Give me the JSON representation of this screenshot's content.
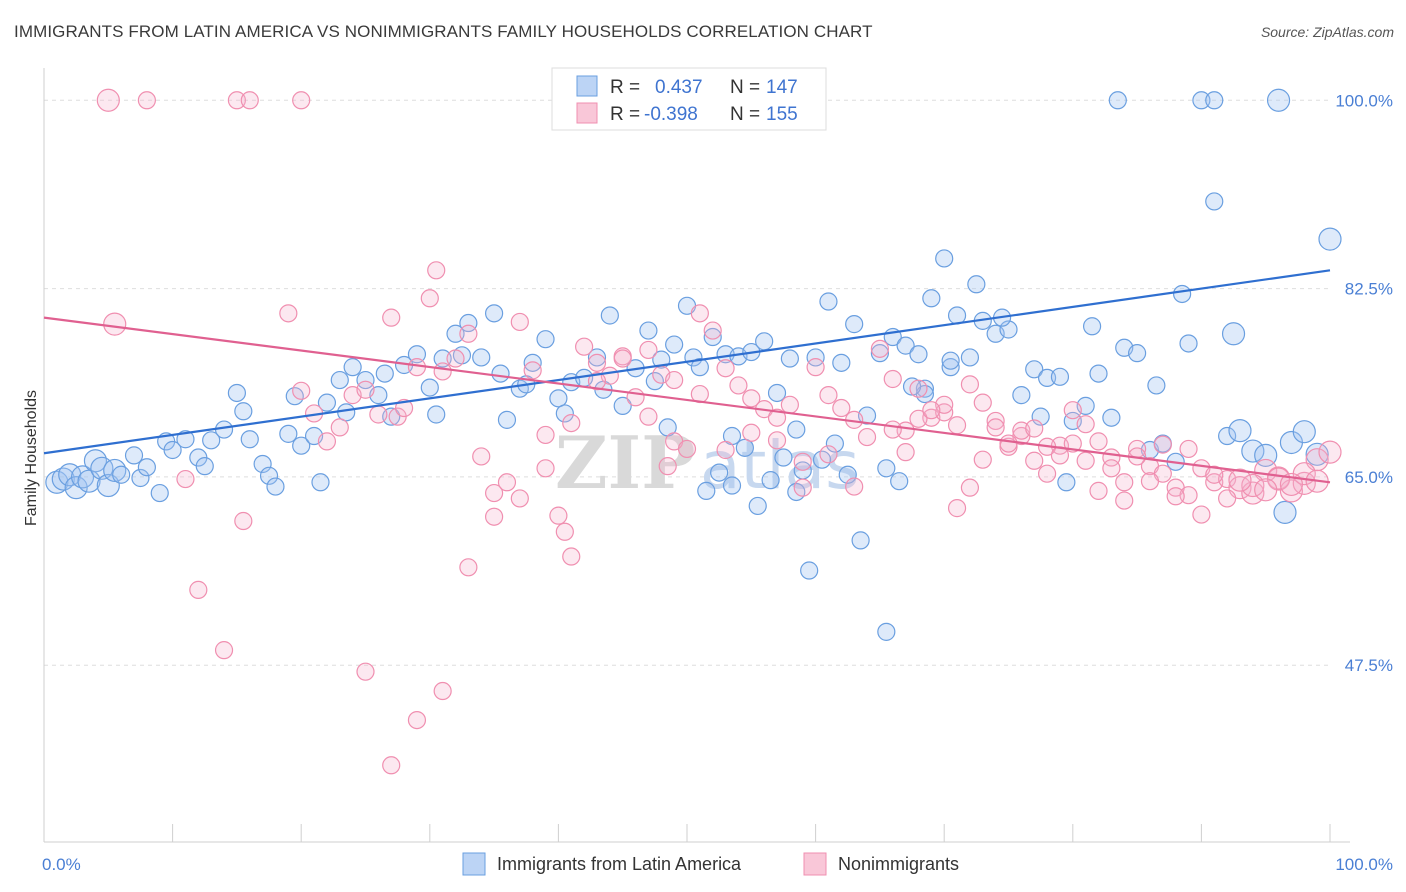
{
  "title": "IMMIGRANTS FROM LATIN AMERICA VS NONIMMIGRANTS FAMILY HOUSEHOLDS CORRELATION CHART",
  "source": "Source: ZipAtlas.com",
  "watermark": "ZIPatlas",
  "colors": {
    "blue": "#6a9fe0",
    "blue_line": "#2f6fd0",
    "pink": "#f08fb0",
    "pink_line": "#e06090",
    "tick": "#4a7fd4"
  },
  "legend": {
    "r_label": "R =",
    "n_label": "N =",
    "blue": {
      "r": "0.437",
      "n": "147"
    },
    "pink": {
      "r": "-0.398",
      "n": "155"
    }
  },
  "chart_data": {
    "type": "scatter",
    "title": "IMMIGRANTS FROM LATIN AMERICA VS NONIMMIGRANTS FAMILY HOUSEHOLDS CORRELATION CHART",
    "xlabel": "",
    "ylabel": "Family Households",
    "xlim": [
      0,
      100
    ],
    "ylim": [
      32,
      103
    ],
    "x_ticks": [
      "0.0%",
      "100.0%"
    ],
    "y_ticks": [
      {
        "value": 100.0,
        "label": "100.0%"
      },
      {
        "value": 82.5,
        "label": "82.5%"
      },
      {
        "value": 65.0,
        "label": "65.0%"
      },
      {
        "value": 47.5,
        "label": "47.5%"
      }
    ],
    "legend_position": "bottom",
    "series": [
      {
        "name": "Immigrants from Latin America",
        "trend": [
          [
            0,
            67.2
          ],
          [
            100,
            84.2
          ]
        ],
        "points": [
          [
            1,
            64.5
          ],
          [
            1.5,
            64.8
          ],
          [
            2,
            65.2
          ],
          [
            2.5,
            64.0
          ],
          [
            3,
            65.0
          ],
          [
            3.5,
            64.6
          ],
          [
            4,
            66.5
          ],
          [
            4.5,
            65.8
          ],
          [
            5,
            64.2
          ],
          [
            5.5,
            65.6
          ],
          [
            6,
            65.2
          ],
          [
            7,
            67.0
          ],
          [
            7.5,
            64.9
          ],
          [
            8,
            65.9
          ],
          [
            9,
            63.5
          ],
          [
            9.5,
            68.3
          ],
          [
            10,
            67.5
          ],
          [
            11,
            68.5
          ],
          [
            12,
            66.8
          ],
          [
            12.5,
            66.0
          ],
          [
            13,
            68.4
          ],
          [
            14,
            69.4
          ],
          [
            15,
            72.8
          ],
          [
            15.5,
            71.1
          ],
          [
            16,
            68.5
          ],
          [
            17,
            66.2
          ],
          [
            17.5,
            65.1
          ],
          [
            18,
            64.1
          ],
          [
            19,
            69.0
          ],
          [
            19.5,
            72.5
          ],
          [
            20,
            67.9
          ],
          [
            21,
            68.8
          ],
          [
            21.5,
            64.5
          ],
          [
            22,
            71.9
          ],
          [
            23,
            74.0
          ],
          [
            23.5,
            71.0
          ],
          [
            24,
            75.2
          ],
          [
            25,
            74.0
          ],
          [
            26,
            72.6
          ],
          [
            26.5,
            74.6
          ],
          [
            27,
            70.6
          ],
          [
            28,
            75.4
          ],
          [
            29,
            76.4
          ],
          [
            30,
            73.3
          ],
          [
            30.5,
            70.8
          ],
          [
            31,
            76.0
          ],
          [
            32,
            78.3
          ],
          [
            32.5,
            76.3
          ],
          [
            33,
            79.3
          ],
          [
            34,
            76.1
          ],
          [
            35,
            80.2
          ],
          [
            35.5,
            74.6
          ],
          [
            36,
            70.3
          ],
          [
            37,
            73.2
          ],
          [
            37.5,
            73.6
          ],
          [
            38,
            75.6
          ],
          [
            39,
            77.8
          ],
          [
            40,
            72.3
          ],
          [
            40.5,
            70.9
          ],
          [
            41,
            73.8
          ],
          [
            42,
            74.2
          ],
          [
            43,
            76.1
          ],
          [
            43.5,
            73.1
          ],
          [
            44,
            80.0
          ],
          [
            45,
            71.6
          ],
          [
            46,
            75.1
          ],
          [
            47,
            78.6
          ],
          [
            47.5,
            73.9
          ],
          [
            48,
            75.9
          ],
          [
            48.5,
            69.6
          ],
          [
            49,
            77.3
          ],
          [
            50,
            80.9
          ],
          [
            50.5,
            76.1
          ],
          [
            51,
            75.2
          ],
          [
            52,
            78.0
          ],
          [
            53,
            76.4
          ],
          [
            53.5,
            68.8
          ],
          [
            54,
            76.2
          ],
          [
            55,
            76.6
          ],
          [
            56,
            77.6
          ],
          [
            57,
            72.8
          ],
          [
            58,
            76.0
          ],
          [
            58.5,
            69.4
          ],
          [
            59,
            65.6
          ],
          [
            60,
            76.1
          ],
          [
            61,
            81.3
          ],
          [
            62,
            75.6
          ],
          [
            62.5,
            65.2
          ],
          [
            63,
            79.2
          ],
          [
            64,
            70.7
          ],
          [
            65,
            76.5
          ],
          [
            65.5,
            65.8
          ],
          [
            66,
            78.0
          ],
          [
            67,
            77.2
          ],
          [
            68,
            76.4
          ],
          [
            68.5,
            73.2
          ],
          [
            69,
            81.6
          ],
          [
            70,
            85.3
          ],
          [
            70.5,
            75.2
          ],
          [
            71,
            80.0
          ],
          [
            72,
            76.1
          ],
          [
            73,
            79.5
          ],
          [
            74,
            78.3
          ],
          [
            75,
            78.7
          ],
          [
            76,
            72.6
          ],
          [
            77,
            75.0
          ],
          [
            78,
            74.2
          ],
          [
            79,
            74.3
          ],
          [
            80,
            70.2
          ],
          [
            81,
            71.6
          ],
          [
            82,
            74.6
          ],
          [
            83,
            70.5
          ],
          [
            84,
            77.0
          ],
          [
            85,
            76.5
          ],
          [
            86,
            67.5
          ],
          [
            87,
            68.1
          ],
          [
            88,
            66.4
          ],
          [
            89,
            77.4
          ],
          [
            90,
            100
          ],
          [
            91,
            100
          ],
          [
            92,
            68.8
          ],
          [
            93,
            69.3
          ],
          [
            94,
            67.4
          ],
          [
            95,
            67.0
          ],
          [
            96,
            100
          ],
          [
            97,
            68.2
          ],
          [
            98,
            69.2
          ],
          [
            99,
            67.1
          ],
          [
            100,
            87.1
          ],
          [
            96.5,
            61.7
          ],
          [
            92.5,
            78.3
          ],
          [
            91,
            90.6
          ],
          [
            88.5,
            82.0
          ],
          [
            86.5,
            73.5
          ],
          [
            83.5,
            100
          ],
          [
            81.5,
            79.0
          ],
          [
            79.5,
            64.5
          ],
          [
            77.5,
            70.6
          ],
          [
            74.5,
            79.8
          ],
          [
            72.5,
            82.9
          ],
          [
            70.5,
            75.8
          ],
          [
            68.5,
            72.7
          ],
          [
            67.5,
            73.4
          ],
          [
            66.5,
            64.6
          ],
          [
            65.5,
            50.6
          ],
          [
            63.5,
            59.1
          ],
          [
            61.5,
            68.1
          ],
          [
            60.5,
            66.6
          ],
          [
            59.5,
            56.3
          ],
          [
            58.5,
            63.6
          ],
          [
            57.5,
            66.8
          ],
          [
            56.5,
            64.7
          ],
          [
            55.5,
            62.3
          ],
          [
            54.5,
            67.7
          ],
          [
            53.5,
            64.2
          ],
          [
            52.5,
            65.4
          ],
          [
            51.5,
            63.7
          ]
        ]
      },
      {
        "name": "Nonimmigrants",
        "trend": [
          [
            0,
            79.8
          ],
          [
            100,
            64.5
          ]
        ],
        "points": [
          [
            5,
            100
          ],
          [
            8,
            100
          ],
          [
            15,
            100
          ],
          [
            16,
            100
          ],
          [
            20,
            100
          ],
          [
            5.5,
            79.2
          ],
          [
            11,
            64.8
          ],
          [
            12,
            54.5
          ],
          [
            14,
            48.9
          ],
          [
            15.5,
            60.9
          ],
          [
            19,
            80.2
          ],
          [
            20,
            73.0
          ],
          [
            21,
            70.9
          ],
          [
            22,
            68.3
          ],
          [
            23,
            69.6
          ],
          [
            24,
            72.6
          ],
          [
            25,
            73.1
          ],
          [
            26,
            70.8
          ],
          [
            27,
            79.8
          ],
          [
            27.5,
            70.6
          ],
          [
            28,
            71.4
          ],
          [
            29,
            75.2
          ],
          [
            30,
            81.6
          ],
          [
            30.5,
            84.2
          ],
          [
            31,
            74.8
          ],
          [
            32,
            76.0
          ],
          [
            33,
            78.3
          ],
          [
            34,
            66.9
          ],
          [
            35,
            63.5
          ],
          [
            36,
            64.5
          ],
          [
            37,
            79.4
          ],
          [
            38,
            74.9
          ],
          [
            39,
            68.9
          ],
          [
            40,
            61.4
          ],
          [
            40.5,
            59.9
          ],
          [
            41,
            57.6
          ],
          [
            42,
            77.1
          ],
          [
            43,
            75.6
          ],
          [
            44,
            74.4
          ],
          [
            45,
            76.2
          ],
          [
            46,
            72.4
          ],
          [
            47,
            70.6
          ],
          [
            48,
            74.5
          ],
          [
            48.5,
            66.0
          ],
          [
            49,
            68.3
          ],
          [
            50,
            67.6
          ],
          [
            51,
            80.2
          ],
          [
            52,
            78.6
          ],
          [
            53,
            75.1
          ],
          [
            54,
            73.5
          ],
          [
            55,
            72.3
          ],
          [
            56,
            71.3
          ],
          [
            57,
            70.5
          ],
          [
            58,
            71.7
          ],
          [
            59,
            66.4
          ],
          [
            60,
            75.2
          ],
          [
            61,
            72.6
          ],
          [
            62,
            71.4
          ],
          [
            63,
            70.3
          ],
          [
            64,
            68.7
          ],
          [
            65,
            76.9
          ],
          [
            66,
            74.1
          ],
          [
            67,
            69.3
          ],
          [
            68,
            73.2
          ],
          [
            69,
            70.5
          ],
          [
            70,
            71.0
          ],
          [
            71,
            62.1
          ],
          [
            72,
            64.0
          ],
          [
            73,
            71.9
          ],
          [
            74,
            70.2
          ],
          [
            75,
            67.8
          ],
          [
            76,
            68.8
          ],
          [
            77,
            66.5
          ],
          [
            78,
            65.3
          ],
          [
            79,
            67.9
          ],
          [
            80,
            71.2
          ],
          [
            81,
            69.9
          ],
          [
            82,
            68.3
          ],
          [
            83,
            66.8
          ],
          [
            84,
            64.5
          ],
          [
            85,
            67.6
          ],
          [
            86,
            66.0
          ],
          [
            87,
            65.3
          ],
          [
            88,
            64.0
          ],
          [
            89,
            63.3
          ],
          [
            90,
            65.8
          ],
          [
            91,
            64.5
          ],
          [
            92,
            64.8
          ],
          [
            93,
            64.0
          ],
          [
            94,
            63.5
          ],
          [
            95,
            65.6
          ],
          [
            96,
            64.9
          ],
          [
            97,
            63.7
          ],
          [
            98,
            64.4
          ],
          [
            99,
            66.6
          ],
          [
            100,
            67.3
          ],
          [
            66,
            69.4
          ],
          [
            68,
            70.4
          ],
          [
            70,
            71.7
          ],
          [
            72,
            73.6
          ],
          [
            74,
            69.6
          ],
          [
            76,
            69.3
          ],
          [
            78,
            67.8
          ],
          [
            80,
            68.1
          ],
          [
            82,
            63.7
          ],
          [
            84,
            62.8
          ],
          [
            86,
            64.6
          ],
          [
            88,
            63.2
          ],
          [
            90,
            61.5
          ],
          [
            92,
            63.0
          ],
          [
            94,
            64.2
          ],
          [
            96,
            64.8
          ],
          [
            98,
            65.3
          ],
          [
            75,
            68.1
          ],
          [
            77,
            69.5
          ],
          [
            79,
            67.0
          ],
          [
            81,
            66.5
          ],
          [
            83,
            65.8
          ],
          [
            85,
            66.9
          ],
          [
            87,
            68.0
          ],
          [
            89,
            67.6
          ],
          [
            91,
            65.2
          ],
          [
            93,
            64.7
          ],
          [
            95,
            63.8
          ],
          [
            97,
            64.3
          ],
          [
            99,
            64.6
          ],
          [
            67,
            67.3
          ],
          [
            69,
            71.2
          ],
          [
            71,
            69.8
          ],
          [
            73,
            66.6
          ],
          [
            63,
            64.1
          ],
          [
            61,
            67.1
          ],
          [
            59,
            64.0
          ],
          [
            57,
            68.4
          ],
          [
            55,
            69.1
          ],
          [
            53,
            67.5
          ],
          [
            51,
            72.7
          ],
          [
            49,
            74.0
          ],
          [
            47,
            76.8
          ],
          [
            45,
            76.0
          ],
          [
            43,
            73.9
          ],
          [
            41,
            70.0
          ],
          [
            39,
            65.8
          ],
          [
            37,
            63.0
          ],
          [
            35,
            61.3
          ],
          [
            33,
            56.6
          ],
          [
            31,
            45.1
          ],
          [
            29,
            42.4
          ],
          [
            27,
            38.2
          ],
          [
            25,
            46.9
          ]
        ]
      }
    ]
  },
  "bottom_legend": {
    "blue_label": "Immigrants from Latin America",
    "pink_label": "Nonimmigrants"
  }
}
